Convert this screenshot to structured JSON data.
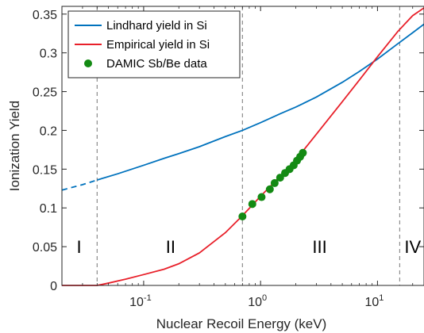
{
  "chart_data": {
    "type": "line",
    "xlabel": "Nuclear Recoil Energy (keV)",
    "ylabel": "Ionization Yield",
    "xscale": "log",
    "xlim": [
      0.02,
      25
    ],
    "ylim": [
      0,
      0.36
    ],
    "xticks": [
      {
        "value": 0.1,
        "base": "10",
        "exp": "-1"
      },
      {
        "value": 1,
        "base": "10",
        "exp": "0"
      },
      {
        "value": 10,
        "base": "10",
        "exp": "1"
      }
    ],
    "yticks": [
      "0",
      "0.05",
      "0.1",
      "0.15",
      "0.2",
      "0.25",
      "0.3",
      "0.35"
    ],
    "legend_position": "top-left",
    "series": [
      {
        "name": "Lindhard yield in Si",
        "color": "#0072BD",
        "style": "line",
        "dashed_below": 0.04,
        "x": [
          0.02,
          0.03,
          0.04,
          0.06,
          0.1,
          0.15,
          0.2,
          0.3,
          0.5,
          0.7,
          1,
          1.5,
          2,
          3,
          5,
          7,
          10,
          15,
          20,
          25
        ],
        "y": [
          0.123,
          0.13,
          0.136,
          0.144,
          0.155,
          0.164,
          0.17,
          0.179,
          0.192,
          0.2,
          0.21,
          0.222,
          0.23,
          0.243,
          0.262,
          0.276,
          0.292,
          0.312,
          0.326,
          0.337
        ]
      },
      {
        "name": "Empirical yield in Si",
        "color": "#E8202A",
        "style": "line",
        "x": [
          0.02,
          0.04,
          0.05,
          0.07,
          0.1,
          0.15,
          0.2,
          0.3,
          0.5,
          0.7,
          1,
          1.5,
          2,
          3,
          5,
          7,
          10,
          15,
          20,
          25
        ],
        "y": [
          0,
          0,
          0.003,
          0.008,
          0.014,
          0.021,
          0.028,
          0.042,
          0.068,
          0.09,
          0.115,
          0.142,
          0.162,
          0.195,
          0.237,
          0.265,
          0.295,
          0.328,
          0.348,
          0.358
        ]
      },
      {
        "name": "DAMIC Sb/Be data",
        "color": "#138A13",
        "style": "markers",
        "x": [
          0.7,
          0.85,
          1.02,
          1.2,
          1.32,
          1.47,
          1.62,
          1.77,
          1.92,
          2.05,
          2.18,
          2.3
        ],
        "y": [
          0.089,
          0.105,
          0.114,
          0.124,
          0.132,
          0.139,
          0.145,
          0.15,
          0.155,
          0.161,
          0.166,
          0.171
        ]
      }
    ],
    "regions": {
      "boundaries": [
        0.04,
        0.7,
        15.5
      ],
      "labels": [
        {
          "text": "I",
          "x": 0.028
        },
        {
          "text": "II",
          "x": 0.17
        },
        {
          "text": "III",
          "x": 3.2
        },
        {
          "text": "IV",
          "x": 20
        }
      ],
      "label_y": 0.05
    }
  }
}
